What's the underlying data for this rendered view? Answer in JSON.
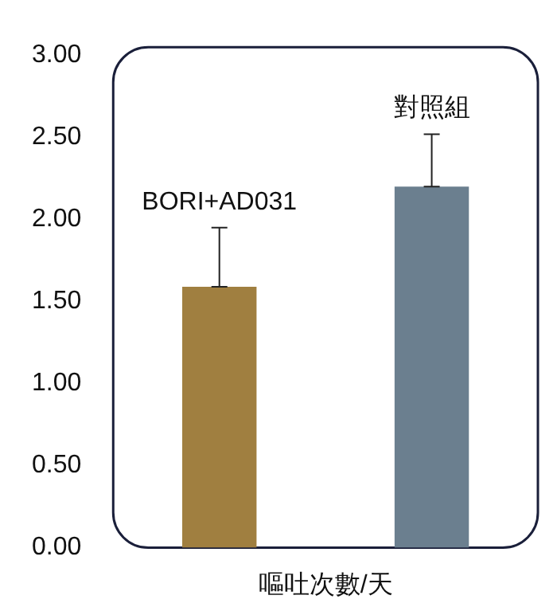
{
  "chart_data": {
    "type": "bar",
    "xlabel": "嘔吐次數/天",
    "categories": [
      "BORI+AD031",
      "對照組"
    ],
    "values": [
      1.59,
      2.2
    ],
    "colors": [
      "#a07f40",
      "#6b7f8f"
    ],
    "errors": [
      [
        1.59,
        1.95
      ],
      [
        2.2,
        2.52
      ]
    ],
    "ylim": [
      0,
      3.05
    ],
    "yticks": [
      {
        "value": 0,
        "label": "0.00"
      },
      {
        "value": 0.5,
        "label": "0.50"
      },
      {
        "value": 1,
        "label": "1.00"
      },
      {
        "value": 1.5,
        "label": "1.50"
      },
      {
        "value": 2,
        "label": "2.00"
      },
      {
        "value": 2.5,
        "label": "2.50"
      },
      {
        "value": 3,
        "label": "3.00"
      }
    ],
    "grid": false,
    "legend": false
  }
}
